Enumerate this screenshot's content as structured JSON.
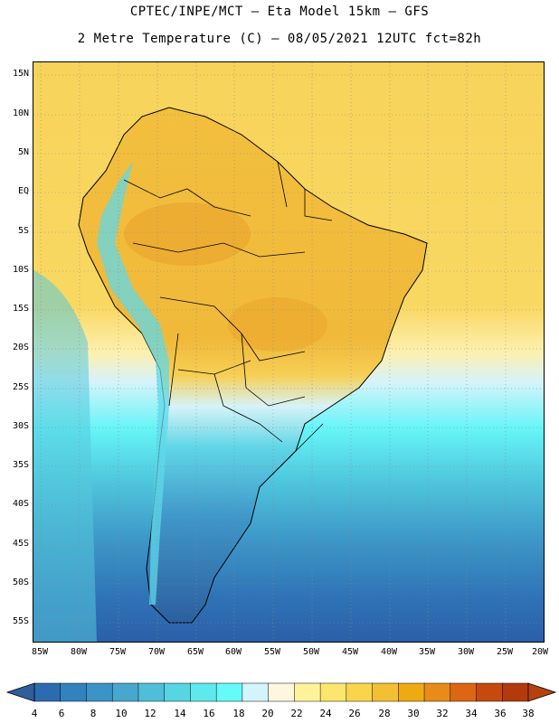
{
  "header": {
    "line1": "CPTEC/INPE/MCT –  Eta Model 15km – GFS",
    "line2": "2 Metre Temperature (C) – 08/05/2021 12UTC fct=82h"
  },
  "axes": {
    "lat_labels": [
      "15N",
      "10N",
      "5N",
      "EQ",
      "5S",
      "10S",
      "15S",
      "20S",
      "25S",
      "30S",
      "35S",
      "40S",
      "45S",
      "50S",
      "55S"
    ],
    "lon_labels": [
      "85W",
      "80W",
      "75W",
      "70W",
      "65W",
      "60W",
      "55W",
      "50W",
      "45W",
      "40W",
      "35W",
      "30W",
      "25W",
      "20W"
    ]
  },
  "colorbar": {
    "ticks": [
      "4",
      "6",
      "8",
      "10",
      "12",
      "14",
      "16",
      "18",
      "20",
      "22",
      "24",
      "26",
      "28",
      "30",
      "32",
      "34",
      "36",
      "38"
    ],
    "colors": [
      "#2b6cb0",
      "#3182bd",
      "#3b94c7",
      "#47a7cf",
      "#4fbfd9",
      "#56d5e3",
      "#5ee9ec",
      "#66faf8",
      "#d2f4fa",
      "#fff6de",
      "#fff39a",
      "#fde66e",
      "#f9d54e",
      "#f2c032",
      "#efaa12",
      "#e88b18",
      "#dd6613",
      "#c64a0e",
      "#b33a0a"
    ],
    "low_color": "#2e5f9c",
    "high_color": "#b5410d"
  }
}
